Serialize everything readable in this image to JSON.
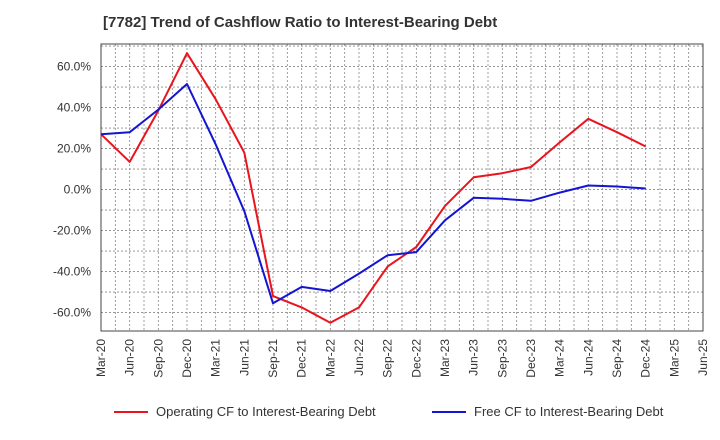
{
  "title": "[7782]  Trend of Cashflow Ratio to Interest-Bearing Debt",
  "chart_data": {
    "type": "line",
    "x": [
      "Mar-20",
      "Jun-20",
      "Sep-20",
      "Dec-20",
      "Mar-21",
      "Jun-21",
      "Sep-21",
      "Dec-21",
      "Mar-22",
      "Jun-22",
      "Sep-22",
      "Dec-22",
      "Mar-23",
      "Jun-23",
      "Sep-23",
      "Dec-23",
      "Mar-24",
      "Jun-24",
      "Sep-24",
      "Dec-24",
      "Mar-25",
      "Jun-25"
    ],
    "y_ticks": [
      "60.0%",
      "40.0%",
      "20.0%",
      "0.0%",
      "-20.0%",
      "-40.0%",
      "-60.0%"
    ],
    "y_tick_values": [
      60,
      40,
      20,
      0,
      -20,
      -40,
      -60
    ],
    "ylim": [
      -69,
      71
    ],
    "grid": true,
    "legend_position": "bottom",
    "series": [
      {
        "name": "Operating CF to Interest-Bearing Debt",
        "color": "#e8141e",
        "points": [
          {
            "x": "Mar-20",
            "y": 27.0
          },
          {
            "x": "Jun-20",
            "y": 13.5
          },
          {
            "x": "Sep-20",
            "y": 38.5
          },
          {
            "x": "Dec-20",
            "y": 66.5
          },
          {
            "x": "Mar-21",
            "y": 44.0
          },
          {
            "x": "Jun-21",
            "y": 18.0
          },
          {
            "x": "Sep-21",
            "y": -52.0
          },
          {
            "x": "Dec-21",
            "y": -57.5
          },
          {
            "x": "Mar-22",
            "y": -65.0
          },
          {
            "x": "Jun-22",
            "y": -57.5
          },
          {
            "x": "Sep-22",
            "y": -37.5
          },
          {
            "x": "Dec-22",
            "y": -28.0
          },
          {
            "x": "Mar-23",
            "y": -8.0
          },
          {
            "x": "Jun-23",
            "y": 6.0
          },
          {
            "x": "Sep-23",
            "y": 8.0
          },
          {
            "x": "Dec-23",
            "y": 11.0
          },
          {
            "x": "Mar-24",
            "y": 23.0
          },
          {
            "x": "Jun-24",
            "y": 34.5
          },
          {
            "x": "Sep-24",
            "y": 28.0
          },
          {
            "x": "Dec-24",
            "y": 21.0
          }
        ]
      },
      {
        "name": "Free CF to Interest-Bearing Debt",
        "color": "#1414d2",
        "points": [
          {
            "x": "Mar-20",
            "y": 27.0
          },
          {
            "x": "Jun-20",
            "y": 28.0
          },
          {
            "x": "Sep-20",
            "y": 39.0
          },
          {
            "x": "Dec-20",
            "y": 51.5
          },
          {
            "x": "Mar-21",
            "y": 22.0
          },
          {
            "x": "Jun-21",
            "y": -10.5
          },
          {
            "x": "Sep-21",
            "y": -55.5
          },
          {
            "x": "Dec-21",
            "y": -47.5
          },
          {
            "x": "Mar-22",
            "y": -49.5
          },
          {
            "x": "Jun-22",
            "y": -41.0
          },
          {
            "x": "Sep-22",
            "y": -32.0
          },
          {
            "x": "Dec-22",
            "y": -30.5
          },
          {
            "x": "Mar-23",
            "y": -15.0
          },
          {
            "x": "Jun-23",
            "y": -4.0
          },
          {
            "x": "Sep-23",
            "y": -4.5
          },
          {
            "x": "Dec-23",
            "y": -5.5
          },
          {
            "x": "Mar-24",
            "y": -1.5
          },
          {
            "x": "Jun-24",
            "y": 2.0
          },
          {
            "x": "Sep-24",
            "y": 1.5
          },
          {
            "x": "Dec-24",
            "y": 0.5
          }
        ]
      }
    ]
  }
}
